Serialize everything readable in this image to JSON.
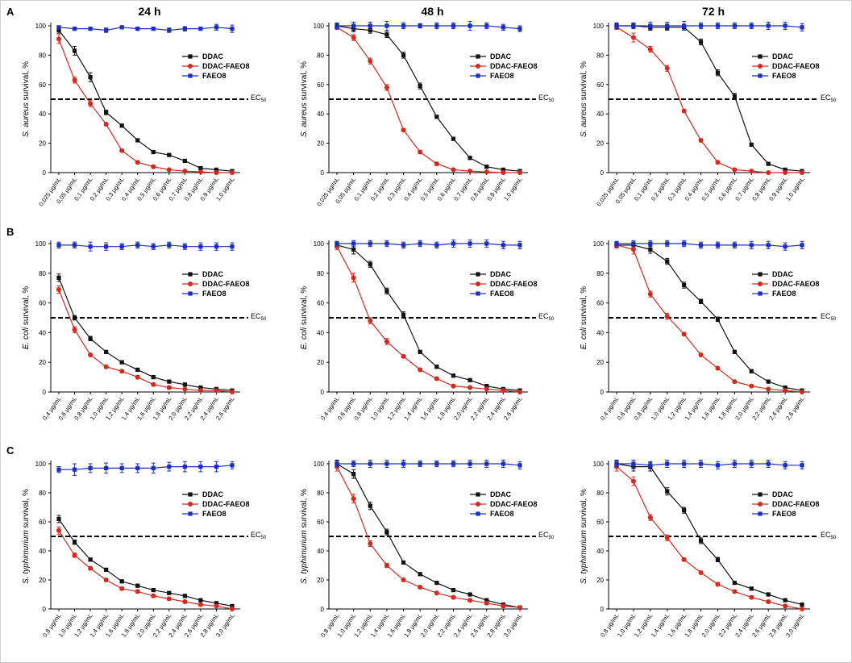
{
  "colors": {
    "DDAC": "#111111",
    "DDAC-FAEO8": "#d42a1e",
    "FAEO8": "#1c2ec0",
    "ec50_line": "#000000"
  },
  "time_headers": [
    "24 h",
    "48 h",
    "72 h"
  ],
  "row_letters": [
    "A",
    "B",
    "C"
  ],
  "legend_labels": [
    "DDAC",
    "DDAC-FAEO8",
    "FAEO8"
  ],
  "ec50_label": {
    "main": "EC",
    "sub": "50"
  },
  "chart_data": [
    {
      "type": "line",
      "row": "A",
      "time": "24 h",
      "ylabel_italic": "S. aureus",
      "ylabel_rest": " survival, %",
      "ylim": [
        0,
        100
      ],
      "yticks": [
        0,
        20,
        40,
        60,
        80,
        100
      ],
      "ec50": 50,
      "categories": [
        "0,025 µg/mL",
        "0,05 µg/mL",
        "0,1 µg/mL",
        "0,2 µg/mL",
        "0,3 µg/mL",
        "0,4 µg/mL",
        "0,5 µg/mL",
        "0,6 µg/mL",
        "0,7 µg/mL",
        "0,8 µg/mL",
        "0,9 µg/mL",
        "1,0 µg/mL"
      ],
      "series": [
        {
          "name": "DDAC",
          "values": [
            97,
            83,
            65,
            41,
            32,
            22,
            14,
            12,
            8,
            3,
            2,
            1
          ],
          "errors": [
            2,
            3,
            3,
            1.5,
            1,
            1,
            1,
            1,
            1,
            1,
            1,
            1
          ]
        },
        {
          "name": "DDAC-FAEO8",
          "values": [
            91,
            63,
            47,
            33,
            15,
            7,
            4,
            2,
            1,
            0.5,
            0,
            0
          ],
          "errors": [
            3,
            2,
            2,
            1,
            1,
            1,
            1,
            0.5,
            0.5,
            0.5,
            0.5,
            0.5
          ]
        },
        {
          "name": "FAEO8",
          "values": [
            99,
            98,
            98,
            97,
            99,
            98,
            98,
            97,
            98,
            98,
            99,
            98
          ],
          "errors": [
            1,
            1,
            1,
            1.5,
            1,
            1,
            1,
            1.5,
            1.5,
            1,
            2,
            2.5
          ]
        }
      ]
    },
    {
      "type": "line",
      "row": "A",
      "time": "48 h",
      "ylabel_italic": "S. aureus",
      "ylabel_rest": " survival, %",
      "ylim": [
        0,
        100
      ],
      "yticks": [
        0,
        20,
        40,
        60,
        80,
        100
      ],
      "ec50": 50,
      "categories": [
        "0,025 µg/mL",
        "0,05 µg/mL",
        "0,1 µg/mL",
        "0,2 µg/mL",
        "0,3 µg/mL",
        "0,4 µg/mL",
        "0,5 µg/mL",
        "0,6 µg/mL",
        "0,7 µg/mL",
        "0,8 µg/mL",
        "0,9 µg/mL",
        "1,0 µg/mL"
      ],
      "series": [
        {
          "name": "DDAC",
          "values": [
            100,
            98,
            97,
            94,
            80,
            59,
            38,
            23,
            10,
            4,
            2,
            1
          ],
          "errors": [
            1.5,
            2,
            2,
            2,
            2,
            2,
            1,
            1,
            1,
            1,
            1,
            1
          ]
        },
        {
          "name": "DDAC-FAEO8",
          "values": [
            99,
            92,
            76,
            58,
            29,
            14,
            6,
            2,
            1,
            0.5,
            0,
            0
          ],
          "errors": [
            1.5,
            2,
            2,
            2,
            1,
            1,
            1,
            0.5,
            0.5,
            0.5,
            0.5,
            0.5
          ]
        },
        {
          "name": "FAEO8",
          "values": [
            100,
            100,
            100,
            100,
            100,
            100,
            100,
            100,
            100,
            100,
            99,
            98
          ],
          "errors": [
            2,
            2.5,
            2.5,
            3,
            2,
            1.5,
            2,
            2,
            3,
            2,
            2,
            2
          ]
        }
      ]
    },
    {
      "type": "line",
      "row": "A",
      "time": "72 h",
      "ylabel_italic": "S. aureus",
      "ylabel_rest": " survival, %",
      "ylim": [
        0,
        100
      ],
      "yticks": [
        0,
        20,
        40,
        60,
        80,
        100
      ],
      "ec50": 50,
      "categories": [
        "0,025 µg/mL",
        "0,05 µg/mL",
        "0,1 µg/mL",
        "0,2 µg/mL",
        "0,3 µg/mL",
        "0,4 µg/mL",
        "0,5 µg/mL",
        "0,6 µg/mL",
        "0,7 µg/mL",
        "0,8 µg/mL",
        "0,9 µg/mL",
        "1,0 µg/mL"
      ],
      "series": [
        {
          "name": "DDAC",
          "values": [
            100,
            100,
            99,
            99,
            99,
            89,
            68,
            52,
            19,
            6,
            2,
            1
          ],
          "errors": [
            1.5,
            1.5,
            2,
            2,
            2,
            2,
            2,
            2,
            1,
            1,
            1,
            1
          ]
        },
        {
          "name": "DDAC-FAEO8",
          "values": [
            99,
            92,
            84,
            71,
            42,
            22,
            7,
            2,
            1,
            0,
            0,
            0
          ],
          "errors": [
            1.5,
            3,
            2,
            2,
            1,
            1,
            1,
            0.5,
            0.5,
            0.5,
            0.5,
            0.5
          ]
        },
        {
          "name": "FAEO8",
          "values": [
            100,
            100,
            100,
            100,
            100,
            100,
            100,
            100,
            100,
            100,
            100,
            99
          ],
          "errors": [
            2,
            2,
            2.5,
            2.5,
            3,
            2,
            2,
            2,
            2,
            2.5,
            2.5,
            2.5
          ]
        }
      ]
    },
    {
      "type": "line",
      "row": "B",
      "time": "24 h",
      "ylabel_italic": "E. coli",
      "ylabel_rest": " survival, %",
      "ylim": [
        0,
        100
      ],
      "yticks": [
        0,
        20,
        40,
        60,
        80,
        100
      ],
      "ec50": 50,
      "categories": [
        "0,4 µg/mL",
        "0,6 µg/mL",
        "0,8 µg/mL",
        "1,0 µg/mL",
        "1,2 µg/mL",
        "1,4 µg/mL",
        "1,6 µg/mL",
        "1,8 µg/mL",
        "2,0 µg/mL",
        "2,2 µg/mL",
        "2,4 µg/mL",
        "2,6 µg/mL"
      ],
      "series": [
        {
          "name": "DDAC",
          "values": [
            77,
            50,
            36,
            27,
            20,
            15,
            10,
            7,
            5,
            3,
            2,
            1
          ],
          "errors": [
            2.5,
            1.5,
            1.5,
            1,
            1,
            1,
            1,
            1,
            1,
            1,
            1,
            1
          ]
        },
        {
          "name": "DDAC-FAEO8",
          "values": [
            69,
            42,
            25,
            17,
            14,
            10,
            5,
            3,
            2,
            1,
            1,
            0
          ],
          "errors": [
            2.5,
            2,
            1,
            1,
            1,
            1,
            1,
            1,
            0.5,
            0.5,
            0.5,
            0.5
          ]
        },
        {
          "name": "FAEO8",
          "values": [
            99,
            99,
            98,
            98,
            98,
            99,
            98,
            99,
            98,
            98,
            98,
            98
          ],
          "errors": [
            2,
            2,
            3,
            2.5,
            2,
            2,
            2,
            2,
            2,
            2.5,
            2.5,
            2.5
          ]
        }
      ]
    },
    {
      "type": "line",
      "row": "B",
      "time": "48 h",
      "ylabel_italic": "E. coli",
      "ylabel_rest": " survival, %",
      "ylim": [
        0,
        100
      ],
      "yticks": [
        0,
        20,
        40,
        60,
        80,
        100
      ],
      "ec50": 50,
      "categories": [
        "0,4 µg/mL",
        "0,6 µg/mL",
        "0,8 µg/mL",
        "1,0 µg/mL",
        "1,2 µg/mL",
        "1,4 µg/mL",
        "1,6 µg/mL",
        "1,8 µg/mL",
        "2,0 µg/mL",
        "2,2 µg/mL",
        "2,4 µg/mL",
        "2,6 µg/mL"
      ],
      "series": [
        {
          "name": "DDAC",
          "values": [
            99,
            96,
            86,
            68,
            52,
            27,
            17,
            11,
            8,
            4,
            2,
            1
          ],
          "errors": [
            2,
            3,
            2,
            2,
            2,
            1,
            1,
            1,
            1,
            1,
            1,
            1
          ]
        },
        {
          "name": "DDAC-FAEO8",
          "values": [
            98,
            77,
            48,
            34,
            24,
            15,
            9,
            4,
            3,
            2,
            1,
            0
          ],
          "errors": [
            2,
            3,
            2,
            2,
            1,
            1,
            1,
            1,
            0.5,
            0.5,
            0.5,
            0.5
          ]
        },
        {
          "name": "FAEO8",
          "values": [
            100,
            100,
            100,
            100,
            99,
            100,
            99,
            100,
            100,
            100,
            99,
            99
          ],
          "errors": [
            1.5,
            2,
            2,
            2,
            2,
            2,
            2,
            2.5,
            2.5,
            2.5,
            2.5,
            2.5
          ]
        }
      ]
    },
    {
      "type": "line",
      "row": "B",
      "time": "72 h",
      "ylabel_italic": "E. coli",
      "ylabel_rest": " survival, %",
      "ylim": [
        0,
        100
      ],
      "yticks": [
        0,
        20,
        40,
        60,
        80,
        100
      ],
      "ec50": 50,
      "categories": [
        "0,4 µg/mL",
        "0,6 µg/mL",
        "0,8 µg/mL",
        "1,0 µg/mL",
        "1,2 µg/mL",
        "1,4 µg/mL",
        "1,6 µg/mL",
        "1,8 µg/mL",
        "2,0 µg/mL",
        "2,2 µg/mL",
        "2,4 µg/mL",
        "2,6 µg/mL"
      ],
      "series": [
        {
          "name": "DDAC",
          "values": [
            99,
            99,
            96,
            88,
            72,
            61,
            49,
            27,
            14,
            7,
            3,
            1
          ],
          "errors": [
            1.5,
            2,
            2.5,
            2,
            2,
            1.5,
            1.5,
            1,
            1,
            1,
            1,
            1
          ]
        },
        {
          "name": "DDAC-FAEO8",
          "values": [
            99,
            96,
            66,
            51,
            39,
            25,
            16,
            7,
            4,
            2,
            1,
            0
          ],
          "errors": [
            2,
            3,
            2,
            2,
            1,
            1,
            1,
            1,
            0.5,
            0.5,
            0.5,
            0.5
          ]
        },
        {
          "name": "FAEO8",
          "values": [
            100,
            100,
            100,
            100,
            100,
            99,
            99,
            99,
            99,
            99,
            98,
            99
          ],
          "errors": [
            1.5,
            2,
            2,
            2,
            2,
            2,
            2,
            2,
            2.5,
            2.5,
            2.5,
            2.5
          ]
        }
      ]
    },
    {
      "type": "line",
      "row": "C",
      "time": "24 h",
      "ylabel_italic": "S. typhimurium",
      "ylabel_rest": " survival, %",
      "ylim": [
        0,
        100
      ],
      "yticks": [
        0,
        20,
        40,
        60,
        80,
        100
      ],
      "ec50": 50,
      "categories": [
        "0,8 µg/mL",
        "1,0 µg/mL",
        "1,2 µg/mL",
        "1,4 µg/mL",
        "1,6 µg/mL",
        "1,8 µg/mL",
        "2,0 µg/mL",
        "2,2 µg/mL",
        "2,4 µg/mL",
        "2,6 µg/mL",
        "2,8 µg/mL",
        "3,0 µg/mL"
      ],
      "series": [
        {
          "name": "DDAC",
          "values": [
            62,
            46,
            34,
            27,
            19,
            16,
            13,
            11,
            9,
            6,
            4,
            2
          ],
          "errors": [
            2.5,
            1.5,
            1,
            1,
            1,
            1,
            1,
            1,
            1,
            1,
            1,
            1
          ]
        },
        {
          "name": "DDAC-FAEO8",
          "values": [
            54,
            37,
            28,
            20,
            14,
            12,
            9,
            7,
            5,
            3,
            2,
            0
          ],
          "errors": [
            2.5,
            1.5,
            1,
            1,
            1,
            1,
            1,
            1,
            1,
            0.5,
            0.5,
            0.5
          ]
        },
        {
          "name": "FAEO8",
          "values": [
            96,
            96,
            97,
            97,
            97,
            97,
            97,
            98,
            98,
            98,
            98,
            99
          ],
          "errors": [
            2,
            4,
            3,
            3.5,
            3,
            3,
            3.5,
            3,
            3.5,
            3.5,
            3.5,
            2.5
          ]
        }
      ]
    },
    {
      "type": "line",
      "row": "C",
      "time": "48 h",
      "ylabel_italic": "S. typhimurium",
      "ylabel_rest": " survival, %",
      "ylim": [
        0,
        100
      ],
      "yticks": [
        0,
        20,
        40,
        60,
        80,
        100
      ],
      "ec50": 50,
      "categories": [
        "0,8 µg/mL",
        "1,0 µg/mL",
        "1,2 µg/mL",
        "1,4 µg/mL",
        "1,6 µg/mL",
        "1,8 µg/mL",
        "2,0 µg/mL",
        "2,2 µg/mL",
        "2,4 µg/mL",
        "2,6 µg/mL",
        "2,8 µg/mL",
        "3,0 µg/mL"
      ],
      "series": [
        {
          "name": "DDAC",
          "values": [
            100,
            93,
            71,
            53,
            32,
            24,
            18,
            13,
            10,
            6,
            3,
            1
          ],
          "errors": [
            2.5,
            3,
            2.5,
            2,
            1,
            1,
            1,
            1,
            1,
            1,
            1,
            1
          ]
        },
        {
          "name": "DDAC-FAEO8",
          "values": [
            98,
            76,
            45,
            30,
            20,
            15,
            11,
            8,
            6,
            4,
            2,
            1
          ],
          "errors": [
            3,
            3,
            2,
            1.5,
            1,
            1,
            1,
            1,
            1,
            1,
            1,
            1
          ]
        },
        {
          "name": "FAEO8",
          "values": [
            100,
            100,
            100,
            100,
            100,
            100,
            100,
            100,
            100,
            100,
            100,
            99
          ],
          "errors": [
            2,
            2,
            2.5,
            2.5,
            2.5,
            2,
            2,
            2,
            2.5,
            2.5,
            2.5,
            2.5
          ]
        }
      ]
    },
    {
      "type": "line",
      "row": "C",
      "time": "72 h",
      "ylabel_italic": "S. typhimurium",
      "ylabel_rest": " survival, %",
      "ylim": [
        0,
        100
      ],
      "yticks": [
        0,
        20,
        40,
        60,
        80,
        100
      ],
      "ec50": 50,
      "categories": [
        "0,8 µg/mL",
        "1,0 µg/mL",
        "1,2 µg/mL",
        "1,4 µg/mL",
        "1,6 µg/mL",
        "1,8 µg/mL",
        "2,0 µg/mL",
        "2,2 µg/mL",
        "2,4 µg/mL",
        "2,6 µg/mL",
        "2,8 µg/mL",
        "3,0 µg/mL"
      ],
      "series": [
        {
          "name": "DDAC",
          "values": [
            100,
            98,
            98,
            81,
            68,
            47,
            34,
            18,
            14,
            10,
            6,
            3
          ],
          "errors": [
            2.5,
            3,
            3,
            2.5,
            2,
            2,
            1.5,
            1,
            1,
            1,
            1,
            1
          ]
        },
        {
          "name": "DDAC-FAEO8",
          "values": [
            98,
            88,
            63,
            49,
            34,
            25,
            17,
            12,
            8,
            5,
            2,
            0
          ],
          "errors": [
            3,
            3,
            2,
            2,
            1,
            1,
            1,
            1,
            1,
            1,
            1,
            0.5
          ]
        },
        {
          "name": "FAEO8",
          "values": [
            100,
            100,
            99,
            100,
            100,
            100,
            99,
            100,
            100,
            100,
            99,
            99
          ],
          "errors": [
            2,
            2.5,
            2.5,
            2.5,
            2.5,
            2.5,
            2.5,
            2.5,
            2.5,
            2.5,
            2.5,
            2.5
          ]
        }
      ]
    }
  ]
}
